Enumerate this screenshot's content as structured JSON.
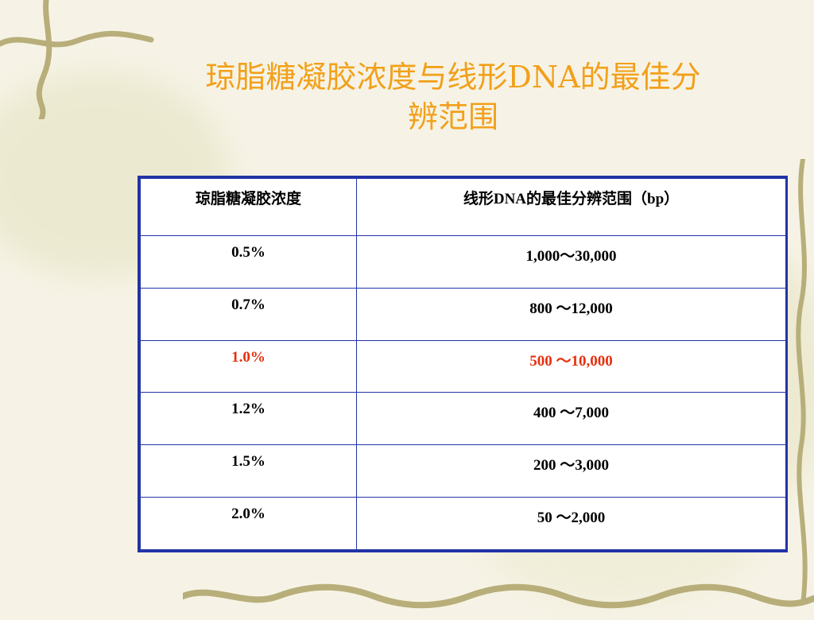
{
  "slide": {
    "title_line1": "琼脂糖凝胶浓度与线形DNA的最佳分",
    "title_line2": "辨范围"
  },
  "table": {
    "headers": [
      "琼脂糖凝胶浓度",
      "线形DNA的最佳分辨范围（bp）"
    ],
    "rows": [
      {
        "concentration": "0.5%",
        "range": "1,000～30,000"
      },
      {
        "concentration": "0.7%",
        "range": "800 ～12,000"
      },
      {
        "concentration": "1.0%",
        "range": "500 ～10,000"
      },
      {
        "concentration": "1.2%",
        "range": "400 ～7,000"
      },
      {
        "concentration": "1.5%",
        "range": "200 ～3,000"
      },
      {
        "concentration": "2.0%",
        "range": "50 ～2,000"
      }
    ],
    "highlight_row_index": 2
  },
  "colors": {
    "title": "#f2a01a",
    "table_border": "#2233a6",
    "highlight_text": "#e8300f",
    "background": "#f6f3e6"
  },
  "decor": {
    "background_icon": "floral-watermark-icon",
    "vine_icon": "vine-border-icon"
  }
}
